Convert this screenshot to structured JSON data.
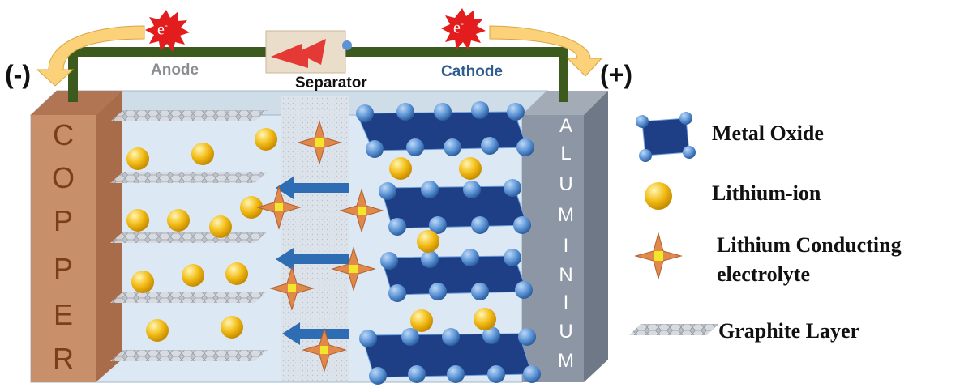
{
  "terminals": {
    "negative": "(-)",
    "positive": "(+)"
  },
  "electrons": {
    "left": "e",
    "right": "e",
    "charge": "-"
  },
  "regions": {
    "anode": "Anode",
    "separator": "Separator",
    "cathode": "Cathode"
  },
  "collectors": {
    "copper": [
      "C",
      "O",
      "P",
      "P",
      "E",
      "R"
    ],
    "aluminium": [
      "A",
      "L",
      "U",
      "M",
      "I",
      "N",
      "I",
      "U",
      "M"
    ]
  },
  "legend": {
    "metal_oxide": "Metal Oxide",
    "lithium_ion": "Lithium-ion",
    "electrolyte_line1": "Lithium Conducting",
    "electrolyte_line2": "electrolyte",
    "graphite": "Graphite Layer"
  },
  "colors": {
    "wire": "#3d5a1e",
    "copper": "#c8906a",
    "aluminium": "#8d96a4",
    "cell": "#dce8f3",
    "metal_oxide": "#1e3f86",
    "atom": "#5b93d6",
    "lithium": "#f3be19",
    "star_outer": "#e0894a",
    "star_inner": "#f2e62a",
    "arrow": "#2e6db3",
    "curved_arrow": "#fbd17a"
  }
}
